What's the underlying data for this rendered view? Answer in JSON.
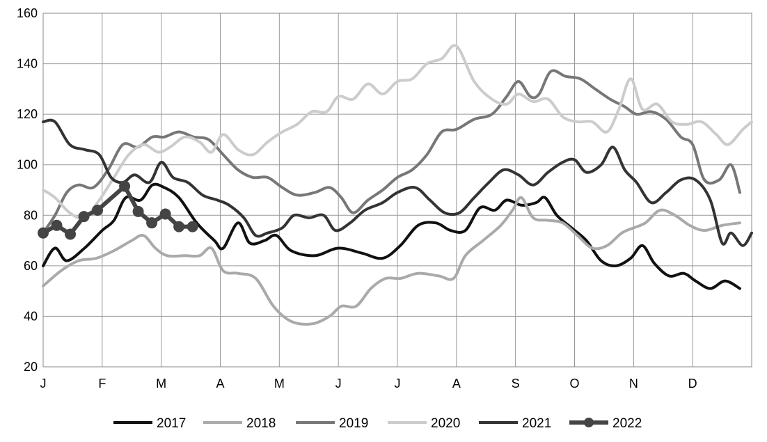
{
  "chart_data": {
    "type": "line",
    "title": "",
    "xlabel": "",
    "ylabel": "",
    "ylim": [
      20,
      160
    ],
    "yticks": [
      20,
      40,
      60,
      80,
      100,
      120,
      140,
      160
    ],
    "xlim": [
      0,
      12
    ],
    "month_ticks": [
      "J",
      "F",
      "M",
      "A",
      "M",
      "J",
      "J",
      "A",
      "S",
      "O",
      "N",
      "D"
    ],
    "grid": true,
    "legend_position": "bottom",
    "series": [
      {
        "name": "2017",
        "color": "#111111",
        "marker": false,
        "points": [
          [
            0,
            60
          ],
          [
            0.2,
            67
          ],
          [
            0.4,
            62
          ],
          [
            0.7,
            67
          ],
          [
            1.0,
            74
          ],
          [
            1.2,
            78
          ],
          [
            1.4,
            87
          ],
          [
            1.65,
            86
          ],
          [
            1.85,
            92
          ],
          [
            2.05,
            91
          ],
          [
            2.3,
            87
          ],
          [
            2.6,
            77
          ],
          [
            2.9,
            70
          ],
          [
            3.05,
            67
          ],
          [
            3.3,
            77
          ],
          [
            3.5,
            69
          ],
          [
            3.75,
            70
          ],
          [
            3.95,
            72
          ],
          [
            4.2,
            66
          ],
          [
            4.6,
            64
          ],
          [
            5.0,
            67
          ],
          [
            5.4,
            65
          ],
          [
            5.75,
            63
          ],
          [
            6.05,
            68
          ],
          [
            6.35,
            76
          ],
          [
            6.65,
            77
          ],
          [
            6.9,
            74
          ],
          [
            7.15,
            74
          ],
          [
            7.4,
            83
          ],
          [
            7.65,
            82
          ],
          [
            7.85,
            86
          ],
          [
            8.1,
            84
          ],
          [
            8.35,
            85
          ],
          [
            8.5,
            87
          ],
          [
            8.7,
            80
          ],
          [
            8.95,
            75
          ],
          [
            9.2,
            70
          ],
          [
            9.45,
            62
          ],
          [
            9.7,
            60
          ],
          [
            9.95,
            63
          ],
          [
            10.15,
            68
          ],
          [
            10.35,
            61
          ],
          [
            10.6,
            56
          ],
          [
            10.85,
            57
          ],
          [
            11.05,
            54
          ],
          [
            11.3,
            51
          ],
          [
            11.55,
            54
          ],
          [
            11.8,
            51
          ]
        ]
      },
      {
        "name": "2018",
        "color": "#aaaaaa",
        "marker": false,
        "points": [
          [
            0,
            52
          ],
          [
            0.3,
            58
          ],
          [
            0.6,
            62
          ],
          [
            0.9,
            63
          ],
          [
            1.2,
            66
          ],
          [
            1.5,
            70
          ],
          [
            1.7,
            72
          ],
          [
            1.9,
            67
          ],
          [
            2.1,
            64
          ],
          [
            2.4,
            64
          ],
          [
            2.65,
            64
          ],
          [
            2.85,
            67
          ],
          [
            3.05,
            58
          ],
          [
            3.3,
            57
          ],
          [
            3.6,
            55
          ],
          [
            3.9,
            44
          ],
          [
            4.2,
            38
          ],
          [
            4.55,
            37
          ],
          [
            4.85,
            40
          ],
          [
            5.05,
            44
          ],
          [
            5.3,
            44
          ],
          [
            5.55,
            51
          ],
          [
            5.8,
            55
          ],
          [
            6.05,
            55
          ],
          [
            6.35,
            57
          ],
          [
            6.7,
            56
          ],
          [
            6.95,
            55
          ],
          [
            7.15,
            64
          ],
          [
            7.45,
            70
          ],
          [
            7.75,
            76
          ],
          [
            7.95,
            82
          ],
          [
            8.1,
            87
          ],
          [
            8.3,
            79
          ],
          [
            8.55,
            78
          ],
          [
            8.8,
            77
          ],
          [
            9.05,
            72
          ],
          [
            9.3,
            67
          ],
          [
            9.55,
            68
          ],
          [
            9.8,
            73
          ],
          [
            10.0,
            75
          ],
          [
            10.2,
            77
          ],
          [
            10.45,
            82
          ],
          [
            10.7,
            80
          ],
          [
            10.95,
            76
          ],
          [
            11.2,
            74
          ],
          [
            11.5,
            76
          ],
          [
            11.8,
            77
          ]
        ]
      },
      {
        "name": "2019",
        "color": "#777777",
        "marker": false,
        "points": [
          [
            0,
            73
          ],
          [
            0.2,
            80
          ],
          [
            0.4,
            89
          ],
          [
            0.6,
            92
          ],
          [
            0.85,
            91
          ],
          [
            1.1,
            98
          ],
          [
            1.35,
            108
          ],
          [
            1.6,
            107
          ],
          [
            1.85,
            111
          ],
          [
            2.05,
            111
          ],
          [
            2.3,
            113
          ],
          [
            2.55,
            111
          ],
          [
            2.8,
            110
          ],
          [
            3.05,
            104
          ],
          [
            3.3,
            98
          ],
          [
            3.55,
            95
          ],
          [
            3.8,
            95
          ],
          [
            4.05,
            91
          ],
          [
            4.3,
            88
          ],
          [
            4.6,
            89
          ],
          [
            4.85,
            91
          ],
          [
            5.05,
            87
          ],
          [
            5.25,
            81
          ],
          [
            5.5,
            86
          ],
          [
            5.75,
            90
          ],
          [
            6.0,
            95
          ],
          [
            6.25,
            98
          ],
          [
            6.5,
            104
          ],
          [
            6.75,
            113
          ],
          [
            7.0,
            114
          ],
          [
            7.3,
            118
          ],
          [
            7.6,
            120
          ],
          [
            7.85,
            127
          ],
          [
            8.05,
            133
          ],
          [
            8.25,
            127
          ],
          [
            8.4,
            128
          ],
          [
            8.6,
            137
          ],
          [
            8.85,
            135
          ],
          [
            9.1,
            134
          ],
          [
            9.35,
            130
          ],
          [
            9.6,
            126
          ],
          [
            9.85,
            123
          ],
          [
            10.05,
            120
          ],
          [
            10.3,
            121
          ],
          [
            10.55,
            118
          ],
          [
            10.8,
            111
          ],
          [
            11.0,
            108
          ],
          [
            11.2,
            94
          ],
          [
            11.45,
            94
          ],
          [
            11.65,
            100
          ],
          [
            11.8,
            89
          ]
        ]
      },
      {
        "name": "2020",
        "color": "#cccccc",
        "marker": false,
        "points": [
          [
            0,
            90
          ],
          [
            0.2,
            87
          ],
          [
            0.45,
            81
          ],
          [
            0.7,
            79
          ],
          [
            0.95,
            86
          ],
          [
            1.2,
            95
          ],
          [
            1.45,
            104
          ],
          [
            1.7,
            108
          ],
          [
            1.95,
            105
          ],
          [
            2.15,
            107
          ],
          [
            2.4,
            111
          ],
          [
            2.65,
            109
          ],
          [
            2.85,
            105
          ],
          [
            3.05,
            112
          ],
          [
            3.3,
            106
          ],
          [
            3.55,
            104
          ],
          [
            3.8,
            109
          ],
          [
            4.05,
            113
          ],
          [
            4.3,
            116
          ],
          [
            4.55,
            121
          ],
          [
            4.8,
            121
          ],
          [
            5.0,
            127
          ],
          [
            5.25,
            126
          ],
          [
            5.5,
            132
          ],
          [
            5.75,
            128
          ],
          [
            6.0,
            133
          ],
          [
            6.25,
            134
          ],
          [
            6.5,
            140
          ],
          [
            6.75,
            142
          ],
          [
            7.0,
            147
          ],
          [
            7.3,
            133
          ],
          [
            7.6,
            126
          ],
          [
            7.85,
            124
          ],
          [
            8.05,
            128
          ],
          [
            8.3,
            125
          ],
          [
            8.55,
            126
          ],
          [
            8.8,
            119
          ],
          [
            9.05,
            117
          ],
          [
            9.3,
            117
          ],
          [
            9.55,
            113
          ],
          [
            9.75,
            122
          ],
          [
            9.95,
            134
          ],
          [
            10.15,
            122
          ],
          [
            10.4,
            124
          ],
          [
            10.65,
            117
          ],
          [
            10.9,
            116
          ],
          [
            11.15,
            117
          ],
          [
            11.4,
            112
          ],
          [
            11.6,
            108
          ],
          [
            11.85,
            114
          ],
          [
            12.0,
            117
          ]
        ]
      },
      {
        "name": "2021",
        "color": "#333333",
        "marker": false,
        "points": [
          [
            0,
            117
          ],
          [
            0.2,
            117
          ],
          [
            0.45,
            108
          ],
          [
            0.7,
            106
          ],
          [
            0.95,
            104
          ],
          [
            1.15,
            95
          ],
          [
            1.35,
            93
          ],
          [
            1.55,
            96
          ],
          [
            1.8,
            93
          ],
          [
            2.0,
            101
          ],
          [
            2.2,
            95
          ],
          [
            2.45,
            93
          ],
          [
            2.7,
            88
          ],
          [
            2.95,
            86
          ],
          [
            3.15,
            84
          ],
          [
            3.4,
            79
          ],
          [
            3.6,
            72
          ],
          [
            3.8,
            73
          ],
          [
            4.05,
            75
          ],
          [
            4.25,
            80
          ],
          [
            4.5,
            79
          ],
          [
            4.75,
            80
          ],
          [
            4.95,
            74
          ],
          [
            5.2,
            77
          ],
          [
            5.45,
            82
          ],
          [
            5.75,
            85
          ],
          [
            6.0,
            89
          ],
          [
            6.3,
            91
          ],
          [
            6.55,
            86
          ],
          [
            6.8,
            81
          ],
          [
            7.05,
            81
          ],
          [
            7.3,
            87
          ],
          [
            7.55,
            93
          ],
          [
            7.8,
            98
          ],
          [
            8.05,
            96
          ],
          [
            8.3,
            92
          ],
          [
            8.55,
            97
          ],
          [
            8.8,
            101
          ],
          [
            9.0,
            102
          ],
          [
            9.2,
            97
          ],
          [
            9.45,
            100
          ],
          [
            9.65,
            107
          ],
          [
            9.85,
            98
          ],
          [
            10.05,
            93
          ],
          [
            10.3,
            85
          ],
          [
            10.55,
            89
          ],
          [
            10.8,
            94
          ],
          [
            11.05,
            94
          ],
          [
            11.3,
            86
          ],
          [
            11.5,
            69
          ],
          [
            11.65,
            73
          ],
          [
            11.85,
            68
          ],
          [
            12.0,
            73
          ]
        ]
      },
      {
        "name": "2022",
        "color": "#444444",
        "marker": true,
        "points": [
          [
            0,
            73
          ],
          [
            0.23,
            76
          ],
          [
            0.46,
            72.5
          ],
          [
            0.69,
            79.5
          ],
          [
            0.92,
            82
          ],
          [
            1.38,
            91.5
          ],
          [
            1.61,
            81.5
          ],
          [
            1.84,
            77
          ],
          [
            2.07,
            80.5
          ],
          [
            2.3,
            75.5
          ],
          [
            2.53,
            75.5
          ]
        ]
      }
    ]
  }
}
